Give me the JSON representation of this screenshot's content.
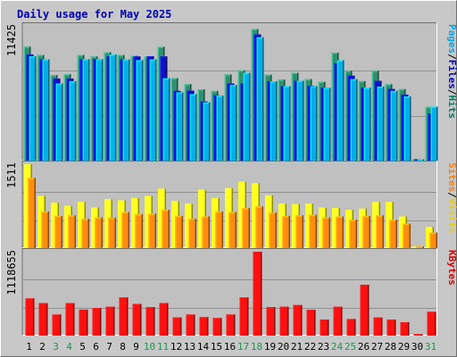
{
  "chart_data": {
    "type": "bar",
    "title": "Daily usage for May 2025",
    "categories": [
      "1",
      "2",
      "3",
      "4",
      "5",
      "6",
      "7",
      "8",
      "9",
      "10",
      "11",
      "12",
      "13",
      "14",
      "15",
      "16",
      "17",
      "18",
      "19",
      "20",
      "21",
      "22",
      "23",
      "24",
      "25",
      "26",
      "27",
      "28",
      "29",
      "30",
      "31"
    ],
    "weekend_days": [
      "3",
      "4",
      "10",
      "11",
      "17",
      "18",
      "24",
      "25",
      "31"
    ],
    "panels": [
      {
        "name": "hits_files_pages",
        "max_label": "11425",
        "ylim": [
          0,
          11425
        ],
        "right_label": [
          "Pages",
          "/",
          "Files",
          "/",
          "Hits"
        ],
        "right_label_colors": [
          "#00a8e8",
          "#000000",
          "#0000c0",
          "#000000",
          "#008060"
        ],
        "series": [
          {
            "name": "Hits",
            "color": "#2f8f6f",
            "values": [
              9660,
              8950,
              7260,
              7320,
              8950,
              8830,
              9190,
              8950,
              8890,
              8830,
              9650,
              6990,
              6490,
              6050,
              5910,
              7310,
              7650,
              11160,
              7280,
              6870,
              7450,
              6910,
              6680,
              9150,
              7620,
              6740,
              7630,
              6480,
              6060,
              120,
              4560
            ]
          },
          {
            "name": "Files",
            "color": "#1010c8",
            "values": [
              9000,
              8590,
              6960,
              6960,
              8590,
              8600,
              8840,
              8590,
              8830,
              8840,
              8830,
              5910,
              5930,
              5010,
              5530,
              6540,
              6540,
              10700,
              6730,
              6310,
              6770,
              6340,
              6180,
              8240,
              7200,
              6200,
              6770,
              6070,
              5600,
              120,
              3980
            ]
          },
          {
            "name": "Pages",
            "color": "#00b0e8",
            "values": [
              8840,
              8590,
              6540,
              6740,
              8600,
              8600,
              9000,
              8590,
              8520,
              8590,
              6980,
              5790,
              5640,
              4940,
              5520,
              6410,
              7440,
              10460,
              6730,
              6310,
              6770,
              6310,
              6180,
              8500,
              6910,
              6200,
              6280,
              5910,
              5440,
              120,
              4580
            ]
          }
        ]
      },
      {
        "name": "visits_sites",
        "max_label": "1511",
        "ylim": [
          0,
          1511
        ],
        "right_label": [
          "Sites",
          "/",
          "Visits"
        ],
        "right_label_colors": [
          "#ff8000",
          "#000000",
          "#e8d000"
        ],
        "series": [
          {
            "name": "Visits",
            "color": "#ffff20",
            "values": [
              1511,
              940,
              820,
              760,
              830,
              730,
              880,
              860,
              900,
              940,
              1070,
              850,
              800,
              1050,
              900,
              1080,
              1195,
              1170,
              950,
              800,
              790,
              800,
              730,
              720,
              690,
              710,
              830,
              830,
              570,
              30,
              380
            ]
          },
          {
            "name": "Sites",
            "color": "#ff8c10",
            "values": [
              1265,
              660,
              580,
              590,
              530,
              550,
              550,
              650,
              610,
              620,
              690,
              580,
              530,
              570,
              660,
              650,
              720,
              750,
              640,
              580,
              590,
              600,
              550,
              570,
              510,
              580,
              590,
              510,
              440,
              30,
              280
            ]
          }
        ]
      },
      {
        "name": "kbytes",
        "max_label": "1118655",
        "ylim": [
          0,
          1118655
        ],
        "right_label": [
          "KBytes"
        ],
        "right_label_colors": [
          "#e00000"
        ],
        "series": [
          {
            "name": "KBytes",
            "color": "#ff1010",
            "values": [
              495400,
              432500,
              281000,
              432500,
              346000,
              367000,
              384000,
              508000,
              422000,
              379000,
              434000,
              241000,
              281000,
              246000,
              234000,
              281000,
              508000,
              1118655,
              379000,
              384000,
              407000,
              343000,
              212000,
              384000,
              221000,
              677000,
              241000,
              212000,
              178000,
              20000,
              317000
            ]
          }
        ]
      }
    ]
  }
}
